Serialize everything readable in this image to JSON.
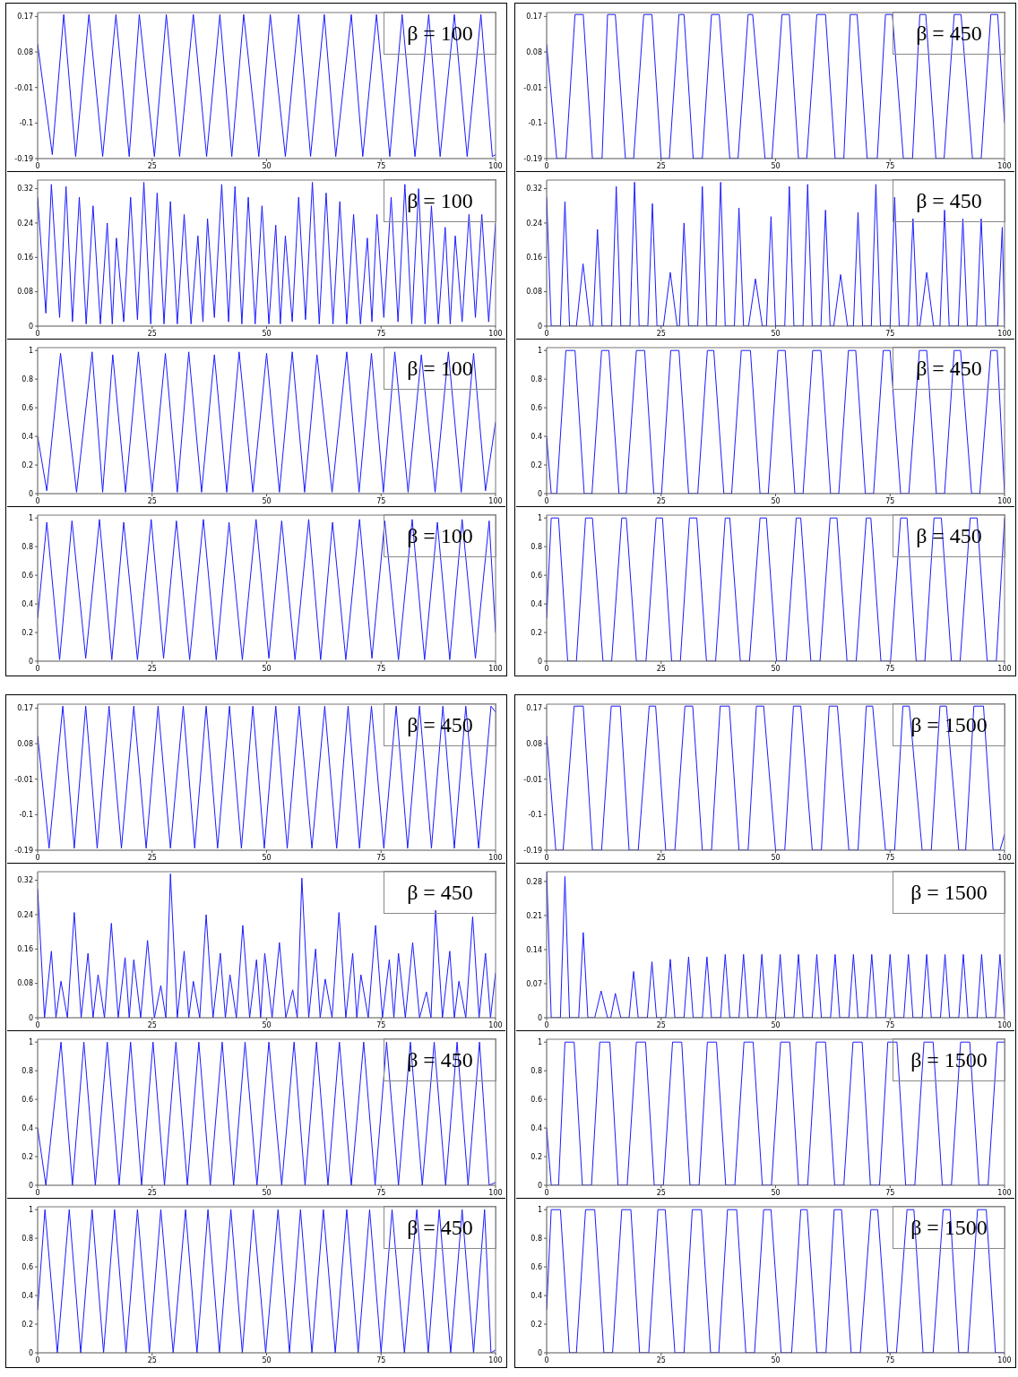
{
  "chart_data": [
    {
      "type": "line",
      "title": "β = 100",
      "xlim": [
        0,
        100
      ],
      "xticks": [
        0,
        25,
        50,
        75,
        100
      ],
      "ylim": [
        -0.19,
        0.18
      ],
      "yticks": [
        -0.19,
        -0.1,
        -0.01,
        0.08,
        0.17
      ],
      "series": [
        {
          "color": "#1a1aff",
          "x": [
            0,
            3.2,
            5.7,
            8.3,
            11.2,
            14.2,
            17.1,
            20,
            22.2,
            25.5,
            28.1,
            31,
            34,
            36.9,
            39.8,
            42.4,
            45,
            48.3,
            50.8,
            54.1,
            57,
            59.6,
            62.6,
            65.1,
            68.5,
            71,
            74,
            76.9,
            79.6,
            82.4,
            85.4,
            87.9,
            91,
            93.8,
            96.8,
            99.3,
            100
          ],
          "values": [
            0.1,
            -0.18,
            0.175,
            -0.185,
            0.175,
            -0.185,
            0.175,
            -0.185,
            0.175,
            -0.185,
            0.175,
            -0.185,
            0.175,
            -0.185,
            0.175,
            -0.185,
            0.175,
            -0.185,
            0.175,
            -0.185,
            0.175,
            -0.185,
            0.175,
            -0.185,
            0.175,
            -0.185,
            0.175,
            -0.185,
            0.175,
            -0.185,
            0.175,
            -0.185,
            0.175,
            -0.185,
            0.175,
            -0.185,
            -0.18
          ]
        }
      ]
    },
    {
      "type": "line",
      "title": "β = 450",
      "xlim": [
        0,
        100
      ],
      "xticks": [
        0,
        25,
        50,
        75,
        100
      ],
      "ylim": [
        -0.19,
        0.18
      ],
      "yticks": [
        -0.19,
        -0.1,
        -0.01,
        0.08,
        0.17
      ],
      "series": [
        {
          "color": "#1a1aff",
          "x": [
            0,
            2.2,
            4.2,
            6.2,
            8,
            10,
            12.1,
            13.3,
            15,
            17.2,
            19,
            21.2,
            23,
            25,
            26.8,
            28.9,
            30,
            32,
            34,
            36,
            37.7,
            40,
            41.8,
            44,
            45,
            47.7,
            49.2,
            51.4,
            53,
            55,
            56.8,
            59,
            60.9,
            63,
            64.9,
            66.3,
            67.8,
            70,
            72.2,
            74,
            75.5,
            77.9,
            79.9,
            81.5,
            82.8,
            85,
            86.8,
            89,
            90.5,
            93,
            94.9,
            97,
            98.5,
            100
          ],
          "values": [
            0.1,
            -0.19,
            -0.19,
            0.175,
            0.175,
            -0.19,
            -0.19,
            0.175,
            0.175,
            -0.19,
            -0.19,
            0.175,
            0.175,
            -0.19,
            -0.19,
            0.175,
            0.175,
            -0.19,
            -0.19,
            0.175,
            0.175,
            -0.19,
            -0.19,
            0.175,
            0.175,
            -0.19,
            -0.19,
            0.175,
            0.175,
            -0.19,
            -0.19,
            0.175,
            0.175,
            -0.19,
            -0.19,
            0.175,
            0.175,
            -0.19,
            -0.19,
            0.175,
            0.175,
            -0.19,
            -0.19,
            0.175,
            0.175,
            -0.19,
            -0.19,
            0.175,
            0.175,
            -0.19,
            -0.19,
            0.175,
            0.175,
            -0.1
          ]
        }
      ]
    },
    {
      "type": "line",
      "title": "β = 100",
      "xlim": [
        0,
        100
      ],
      "xticks": [
        0,
        25,
        50,
        75,
        100
      ],
      "ylim": [
        0,
        0.34
      ],
      "yticks": [
        0,
        0.08,
        0.16,
        0.24,
        0.32
      ],
      "series": [
        {
          "color": "#1a1aff",
          "x": [
            0,
            1.8,
            3,
            4.8,
            6.2,
            7.6,
            9.1,
            10.6,
            12.1,
            13.7,
            15.2,
            16.3,
            17.2,
            18.8,
            20.3,
            21.8,
            23.2,
            24.7,
            26.1,
            27.6,
            29,
            30.5,
            32,
            33.5,
            35,
            36.1,
            37.1,
            38.6,
            40.2,
            41.7,
            43.1,
            44.6,
            46,
            47.5,
            49,
            50.5,
            52,
            53,
            54.1,
            55.6,
            57,
            58.5,
            60,
            61.5,
            63,
            64.5,
            66,
            67.5,
            69,
            70.5,
            72,
            73,
            74.1,
            75.6,
            77.2,
            78.7,
            80.2,
            81.7,
            83.2,
            84.6,
            86,
            87.5,
            89,
            90.1,
            91.2,
            92.7,
            94.2,
            95.6,
            97,
            98.5,
            100
          ],
          "values": [
            0.3,
            0.03,
            0.33,
            0.02,
            0.325,
            0.01,
            0.3,
            0.005,
            0.28,
            0.005,
            0.24,
            0.005,
            0.205,
            0.01,
            0.3,
            0.015,
            0.335,
            0.005,
            0.31,
            0.005,
            0.29,
            0.005,
            0.26,
            0.005,
            0.21,
            0.01,
            0.25,
            0.02,
            0.33,
            0.01,
            0.325,
            0.005,
            0.3,
            0.005,
            0.28,
            0.005,
            0.235,
            0.005,
            0.21,
            0.01,
            0.3,
            0.015,
            0.335,
            0.005,
            0.31,
            0.005,
            0.29,
            0.005,
            0.26,
            0.005,
            0.205,
            0.01,
            0.26,
            0.02,
            0.3,
            0.01,
            0.33,
            0.005,
            0.32,
            0.005,
            0.28,
            0.005,
            0.23,
            0.005,
            0.21,
            0.01,
            0.26,
            0.02,
            0.26,
            0.01,
            0.24
          ]
        }
      ]
    },
    {
      "type": "line",
      "title": "β = 450",
      "xlim": [
        0,
        100
      ],
      "xticks": [
        0,
        25,
        50,
        75,
        100
      ],
      "ylim": [
        0,
        0.34
      ],
      "yticks": [
        0,
        0.08,
        0.16,
        0.24,
        0.32
      ],
      "series": [
        {
          "color": "#1a1aff",
          "x": [
            0,
            1,
            3,
            4,
            5,
            6.5,
            7.95,
            9.5,
            10.1,
            11.1,
            12.1,
            14.2,
            15.2,
            16.2,
            18.2,
            19.2,
            20.2,
            22.1,
            23.1,
            24.1,
            25.5,
            27,
            28.5,
            29,
            30,
            31,
            33,
            34,
            35,
            37,
            38,
            39,
            41,
            42,
            43,
            44.1,
            45.6,
            47.1,
            48,
            49,
            50,
            52,
            53,
            54,
            56,
            57,
            58,
            59.9,
            60.9,
            61.9,
            62.7,
            64.2,
            65.7,
            67,
            68,
            69,
            70.9,
            71.9,
            72.9,
            75,
            76,
            77,
            79,
            80,
            81,
            81.5,
            83,
            84.5,
            85.9,
            86.9,
            87.9,
            89.9,
            90.9,
            91.9,
            93.9,
            94.9,
            95.9,
            98.5,
            99.5,
            100
          ],
          "values": [
            0.3,
            0,
            0,
            0.29,
            0,
            0,
            0.145,
            0,
            0,
            0.225,
            0,
            0,
            0.325,
            0,
            0,
            0.335,
            0,
            0,
            0.285,
            0,
            0,
            0.125,
            0,
            0,
            0.24,
            0,
            0,
            0.325,
            0,
            0,
            0.335,
            0,
            0,
            0.275,
            0,
            0,
            0.11,
            0,
            0,
            0.255,
            0,
            0,
            0.325,
            0,
            0,
            0.33,
            0,
            0,
            0.27,
            0,
            0,
            0.12,
            0,
            0,
            0.265,
            0,
            0,
            0.33,
            0,
            0,
            0.3,
            0,
            0,
            0.25,
            0,
            0,
            0.125,
            0,
            0,
            0.27,
            0,
            0,
            0.25,
            0,
            0,
            0.25,
            0,
            0,
            0.23,
            0
          ]
        }
      ]
    },
    {
      "type": "line",
      "title": "β = 100",
      "xlim": [
        0,
        100
      ],
      "xticks": [
        0,
        25,
        50,
        75,
        100
      ],
      "ylim": [
        0,
        1.02
      ],
      "yticks": [
        0,
        0.2,
        0.4,
        0.6,
        0.8,
        1
      ],
      "series": [
        {
          "color": "#1a1aff",
          "x": [
            0,
            2,
            5,
            8.5,
            11.9,
            14.2,
            16.4,
            19.2,
            22,
            25,
            27.9,
            30.5,
            33,
            35.8,
            38.6,
            41.3,
            44,
            47,
            50,
            52.8,
            55.6,
            58.3,
            61,
            64.3,
            67.5,
            70.2,
            72.9,
            75.5,
            78,
            80.9,
            83.8,
            86.8,
            89.7,
            92.5,
            95.2,
            97.8,
            100
          ],
          "values": [
            0.4,
            0.02,
            0.98,
            0.01,
            0.99,
            0.01,
            0.97,
            0.01,
            0.99,
            0.01,
            0.98,
            0.01,
            0.99,
            0.01,
            0.97,
            0.01,
            0.99,
            0.01,
            0.98,
            0.01,
            0.99,
            0.01,
            0.97,
            0.01,
            0.99,
            0.01,
            0.98,
            0.01,
            0.99,
            0.01,
            0.97,
            0.01,
            0.99,
            0.01,
            0.98,
            0.02,
            0.5
          ]
        }
      ]
    },
    {
      "type": "line",
      "title": "β = 450",
      "xlim": [
        0,
        100
      ],
      "xticks": [
        0,
        25,
        50,
        75,
        100
      ],
      "ylim": [
        0,
        1.02
      ],
      "yticks": [
        0,
        0.2,
        0.4,
        0.6,
        0.8,
        1
      ],
      "series": [
        {
          "color": "#1a1aff",
          "x": [
            0,
            1,
            2.2,
            4.2,
            6.2,
            8.2,
            9.9,
            12,
            13.6,
            15.8,
            17.4,
            19.6,
            21.4,
            23.4,
            25.1,
            27.1,
            28.9,
            31,
            33,
            35.1,
            36.5,
            38.7,
            40.4,
            42.5,
            44.5,
            46.6,
            48.4,
            50.5,
            52.1,
            54.2,
            56,
            58.1,
            59.9,
            62,
            63.8,
            65.9,
            67.5,
            69.6,
            71.4,
            73.5,
            75,
            77.3,
            79.1,
            81.4,
            83,
            85.1,
            86.9,
            89,
            90.4,
            92.8,
            94.6,
            97,
            98.4,
            100
          ],
          "values": [
            0.4,
            0,
            0,
            1,
            1,
            0,
            0,
            1,
            1,
            0,
            0,
            1,
            1,
            0,
            0,
            1,
            1,
            0,
            0,
            1,
            1,
            0,
            0,
            1,
            1,
            0,
            0,
            1,
            1,
            0,
            0,
            1,
            1,
            0,
            0,
            1,
            1,
            0,
            0,
            1,
            1,
            0,
            0,
            1,
            1,
            0,
            0,
            1,
            1,
            0,
            0,
            1,
            1,
            0
          ]
        }
      ]
    },
    {
      "type": "line",
      "title": "β = 100",
      "xlim": [
        0,
        100
      ],
      "xticks": [
        0,
        25,
        50,
        75,
        100
      ],
      "ylim": [
        0,
        1.02
      ],
      "yticks": [
        0,
        0.2,
        0.4,
        0.6,
        0.8,
        1
      ],
      "series": [
        {
          "color": "#1a1aff",
          "x": [
            0,
            2,
            4.8,
            7.5,
            10.5,
            13.5,
            16.2,
            18.8,
            21.8,
            24.8,
            27.5,
            30.3,
            33.2,
            36.2,
            39,
            41.8,
            44.7,
            47.7,
            50.5,
            53.3,
            56.2,
            59.2,
            61.8,
            64.4,
            67.3,
            70.3,
            73,
            75.8,
            78.8,
            81.8,
            84.5,
            87.3,
            90,
            92.7,
            95.6,
            98.6,
            100
          ],
          "values": [
            0.3,
            0.97,
            0.01,
            0.98,
            0.02,
            0.99,
            0.01,
            0.97,
            0.01,
            0.99,
            0.02,
            0.98,
            0.01,
            0.99,
            0.01,
            0.97,
            0.01,
            0.99,
            0.02,
            0.98,
            0.01,
            0.99,
            0.01,
            0.97,
            0.01,
            0.99,
            0.02,
            0.98,
            0.01,
            0.99,
            0.01,
            0.97,
            0.01,
            0.99,
            0.02,
            0.98,
            0.2
          ]
        }
      ]
    },
    {
      "type": "line",
      "title": "β = 450",
      "xlim": [
        0,
        100
      ],
      "xticks": [
        0,
        25,
        50,
        75,
        100
      ],
      "ylim": [
        0,
        1.02
      ],
      "yticks": [
        0,
        0.2,
        0.4,
        0.6,
        0.8,
        1
      ],
      "series": [
        {
          "color": "#1a1aff",
          "x": [
            0,
            1,
            2.6,
            4.6,
            6.5,
            8.5,
            10,
            12.3,
            14.2,
            16.4,
            17.4,
            19.6,
            21.7,
            23.9,
            25.3,
            27.3,
            29.2,
            31.2,
            32.8,
            34.9,
            36.9,
            39,
            40,
            42.3,
            44.3,
            46.6,
            48,
            50.2,
            52.3,
            54.5,
            55.5,
            57.7,
            59.7,
            61.9,
            63.4,
            65.6,
            67.6,
            69.8,
            70.8,
            73,
            75.1,
            77.3,
            78.7,
            80.7,
            82.6,
            84.6,
            86.2,
            88.4,
            90.3,
            92.5,
            94,
            96.2,
            98.2,
            100
          ],
          "values": [
            0.3,
            1,
            1,
            0,
            0,
            1,
            1,
            0,
            0,
            1,
            1,
            0,
            0,
            1,
            1,
            0,
            0,
            1,
            1,
            0,
            0,
            1,
            1,
            0,
            0,
            1,
            1,
            0,
            0,
            1,
            1,
            0,
            0,
            1,
            1,
            0,
            0,
            1,
            1,
            0,
            0,
            1,
            1,
            0,
            0,
            1,
            1,
            0,
            0,
            1,
            1,
            0,
            0,
            1
          ]
        }
      ]
    },
    {
      "type": "line",
      "title": "β = 450",
      "xlim": [
        0,
        100
      ],
      "xticks": [
        0,
        25,
        50,
        75,
        100
      ],
      "ylim": [
        -0.19,
        0.18
      ],
      "yticks": [
        -0.19,
        -0.1,
        -0.01,
        0.08,
        0.17
      ],
      "series": [
        {
          "color": "#1a1aff",
          "x": [
            0,
            2.5,
            5.5,
            8,
            10.5,
            13,
            15.6,
            18.3,
            21,
            23.7,
            26.3,
            29,
            31.8,
            34.3,
            36.8,
            39.3,
            41.9,
            44.5,
            47,
            49.5,
            52,
            54.5,
            57.1,
            59.9,
            62.7,
            65.3,
            67.8,
            70.3,
            72.9,
            75.6,
            78.3,
            80.8,
            83.4,
            86,
            88.5,
            91,
            93.5,
            96.3,
            99,
            100
          ],
          "values": [
            0.1,
            -0.185,
            0.175,
            -0.185,
            0.175,
            -0.185,
            0.175,
            -0.185,
            0.175,
            -0.185,
            0.175,
            -0.185,
            0.175,
            -0.185,
            0.175,
            -0.185,
            0.175,
            -0.185,
            0.175,
            -0.185,
            0.175,
            -0.185,
            0.175,
            -0.185,
            0.175,
            -0.185,
            0.175,
            -0.185,
            0.175,
            -0.185,
            0.175,
            -0.185,
            0.175,
            -0.185,
            0.175,
            -0.185,
            0.175,
            -0.185,
            0.175,
            0.16
          ]
        }
      ]
    },
    {
      "type": "line",
      "title": "β = 1500",
      "xlim": [
        0,
        100
      ],
      "xticks": [
        0,
        25,
        50,
        75,
        100
      ],
      "ylim": [
        -0.19,
        0.18
      ],
      "yticks": [
        -0.19,
        -0.1,
        -0.01,
        0.08,
        0.17
      ],
      "series": [
        {
          "color": "#1a1aff",
          "x": [
            0,
            2,
            3.6,
            6,
            8,
            10,
            12,
            14.1,
            16.1,
            18,
            20,
            22.4,
            23.8,
            26,
            28,
            30.2,
            31.9,
            34,
            36,
            37.9,
            39.9,
            42,
            44,
            45.8,
            47.4,
            50,
            52,
            53.9,
            55.5,
            58,
            60,
            61.7,
            63.5,
            66,
            68,
            69.8,
            71.2,
            74,
            76,
            77.8,
            79.2,
            82,
            84,
            85.9,
            87.3,
            90,
            91.5,
            93.3,
            95.4,
            97.5,
            99,
            100
          ],
          "values": [
            0.1,
            -0.19,
            -0.19,
            0.175,
            0.175,
            -0.19,
            -0.19,
            0.175,
            0.175,
            -0.19,
            -0.19,
            0.175,
            0.175,
            -0.19,
            -0.19,
            0.175,
            0.175,
            -0.19,
            -0.19,
            0.175,
            0.175,
            -0.19,
            -0.19,
            0.175,
            0.175,
            -0.19,
            -0.19,
            0.175,
            0.175,
            -0.19,
            -0.19,
            0.175,
            0.175,
            -0.19,
            -0.19,
            0.175,
            0.175,
            -0.19,
            -0.19,
            0.175,
            0.175,
            -0.19,
            -0.19,
            0.175,
            0.175,
            -0.19,
            -0.19,
            0.175,
            0.175,
            -0.19,
            -0.19,
            -0.15
          ]
        }
      ]
    },
    {
      "type": "line",
      "title": "β = 450",
      "xlim": [
        0,
        100
      ],
      "xticks": [
        0,
        25,
        50,
        75,
        100
      ],
      "ylim": [
        0,
        0.34
      ],
      "yticks": [
        0,
        0.08,
        0.16,
        0.24,
        0.32
      ],
      "series": [
        {
          "color": "#1a1aff",
          "x": [
            0,
            1.5,
            3,
            4,
            5.1,
            6.5,
            8,
            9.5,
            11,
            12.1,
            13.2,
            14.6,
            16.1,
            17.6,
            19.1,
            20,
            21,
            22.5,
            24,
            25.5,
            26.9,
            28,
            29,
            30.5,
            32,
            33,
            34,
            35.4,
            36.8,
            38.3,
            39.9,
            41,
            42,
            43.4,
            44.8,
            46.3,
            47.8,
            48.7,
            49.6,
            51.2,
            52.8,
            54.2,
            55.7,
            56.7,
            57.7,
            59.2,
            60.7,
            61.7,
            62.8,
            64.3,
            65.8,
            67.3,
            68.8,
            69.7,
            70.6,
            72.2,
            73.8,
            75.3,
            76.8,
            77.8,
            78.8,
            80.3,
            81.9,
            83.4,
            84.9,
            85.9,
            86.9,
            88.4,
            90,
            91,
            92,
            93.5,
            95,
            96.4,
            97.8,
            98.9,
            100
          ],
          "values": [
            0.3,
            0,
            0.155,
            0,
            0.085,
            0,
            0.245,
            0,
            0.15,
            0,
            0.1,
            0,
            0.22,
            0,
            0.14,
            0,
            0.135,
            0,
            0.18,
            0,
            0.075,
            0,
            0.335,
            0,
            0.155,
            0,
            0.085,
            0,
            0.24,
            0,
            0.15,
            0,
            0.1,
            0,
            0.215,
            0,
            0.135,
            0,
            0.15,
            0,
            0.175,
            0,
            0.065,
            0,
            0.325,
            0,
            0.16,
            0,
            0.09,
            0,
            0.245,
            0,
            0.15,
            0,
            0.1,
            0,
            0.215,
            0,
            0.135,
            0,
            0.15,
            0,
            0.175,
            0,
            0.06,
            0,
            0.25,
            0,
            0.155,
            0,
            0.085,
            0,
            0.235,
            0,
            0.15,
            0,
            0.105
          ]
        }
      ]
    },
    {
      "type": "line",
      "title": "β = 1500",
      "xlim": [
        0,
        100
      ],
      "xticks": [
        0,
        25,
        50,
        75,
        100
      ],
      "ylim": [
        0,
        0.3
      ],
      "yticks": [
        0,
        0.07,
        0.14,
        0.21,
        0.28
      ],
      "series": [
        {
          "color": "#1a1aff",
          "x": [
            0,
            1,
            3,
            4,
            5,
            7,
            8,
            9,
            10.5,
            11.9,
            13.3,
            14,
            15,
            16.2,
            18,
            19,
            20,
            22,
            23,
            24,
            26,
            27,
            28,
            30,
            31,
            32,
            34,
            35,
            36,
            38,
            39,
            40,
            42,
            43,
            44,
            46,
            47,
            48,
            50,
            51,
            52,
            54,
            55,
            56,
            58,
            59,
            60,
            62,
            63,
            64,
            66,
            67,
            68,
            70,
            71,
            72,
            74,
            75,
            76,
            78,
            79,
            80,
            82,
            83,
            84,
            86,
            87,
            88,
            90,
            91,
            92,
            94,
            95,
            96,
            98,
            99,
            100
          ],
          "values": [
            0.3,
            0,
            0,
            0.29,
            0,
            0,
            0.175,
            0,
            0,
            0.055,
            0,
            0,
            0.05,
            0,
            0,
            0.095,
            0,
            0,
            0.115,
            0,
            0,
            0.12,
            0,
            0,
            0.125,
            0,
            0,
            0.125,
            0,
            0,
            0.13,
            0,
            0,
            0.13,
            0,
            0,
            0.13,
            0,
            0,
            0.13,
            0,
            0,
            0.13,
            0,
            0,
            0.13,
            0,
            0,
            0.13,
            0,
            0,
            0.13,
            0,
            0,
            0.13,
            0,
            0,
            0.13,
            0,
            0,
            0.13,
            0,
            0,
            0.13,
            0,
            0,
            0.13,
            0,
            0,
            0.13,
            0,
            0,
            0.13,
            0,
            0,
            0.13,
            0
          ]
        }
      ]
    },
    {
      "type": "line",
      "title": "β = 450",
      "xlim": [
        0,
        100
      ],
      "xticks": [
        0,
        25,
        50,
        75,
        100
      ],
      "ylim": [
        0,
        1.02
      ],
      "yticks": [
        0,
        0.2,
        0.4,
        0.6,
        0.8,
        1
      ],
      "series": [
        {
          "color": "#1a1aff",
          "x": [
            0,
            1.8,
            5.1,
            7.6,
            10.1,
            12.6,
            15.2,
            17.8,
            20.3,
            22.7,
            25.2,
            27.7,
            30.2,
            32.7,
            35.2,
            37.7,
            40.3,
            42.8,
            45.3,
            47.9,
            50.5,
            53.3,
            56,
            58.4,
            60.9,
            63.4,
            65.9,
            68.5,
            71.2,
            73.7,
            76.2,
            78.8,
            81.4,
            84,
            86.6,
            89.1,
            91.6,
            94,
            96.5,
            98.6,
            100
          ],
          "values": [
            0.4,
            0,
            1,
            0,
            1,
            0,
            1,
            0,
            1,
            0,
            1,
            0,
            1,
            0,
            1,
            0,
            1,
            0,
            1,
            0,
            1,
            0,
            1,
            0,
            1,
            0,
            1,
            0,
            1,
            0,
            1,
            0,
            1,
            0,
            1,
            0,
            1,
            0,
            1,
            0,
            0.02
          ]
        }
      ]
    },
    {
      "type": "line",
      "title": "β = 1500",
      "xlim": [
        0,
        100
      ],
      "xticks": [
        0,
        25,
        50,
        75,
        100
      ],
      "ylim": [
        0,
        1.02
      ],
      "yticks": [
        0,
        0.2,
        0.4,
        0.6,
        0.8,
        1
      ],
      "series": [
        {
          "color": "#1a1aff",
          "x": [
            0,
            1,
            2.6,
            4,
            6,
            7.8,
            9.8,
            11.6,
            13.8,
            15.6,
            17.6,
            19.6,
            21.6,
            23.5,
            25.5,
            27.5,
            29.5,
            31.3,
            33.3,
            35.1,
            37.1,
            39.1,
            41.1,
            43.1,
            45.1,
            47.1,
            49.1,
            51.1,
            53.1,
            55,
            57,
            58.9,
            60.9,
            62.9,
            64.9,
            66.9,
            68.9,
            70.7,
            72.7,
            74.5,
            76.5,
            78.4,
            80.4,
            82.4,
            84.4,
            86.4,
            88.4,
            90.4,
            92.4,
            94.4,
            96.4,
            98.4,
            100
          ],
          "values": [
            0.4,
            0,
            0,
            1,
            1,
            0,
            0,
            1,
            1,
            0,
            0,
            1,
            1,
            0,
            0,
            1,
            1,
            0,
            0,
            1,
            1,
            0,
            0,
            1,
            1,
            0,
            0,
            1,
            1,
            0,
            0,
            1,
            1,
            0,
            0,
            1,
            1,
            0,
            0,
            1,
            1,
            0,
            0,
            1,
            1,
            0,
            0,
            1,
            1,
            0,
            0,
            1,
            1
          ]
        }
      ]
    },
    {
      "type": "line",
      "title": "β = 450",
      "xlim": [
        0,
        100
      ],
      "xticks": [
        0,
        25,
        50,
        75,
        100
      ],
      "ylim": [
        0,
        1.02
      ],
      "yticks": [
        0,
        0.2,
        0.4,
        0.6,
        0.8,
        1
      ],
      "series": [
        {
          "color": "#1a1aff",
          "x": [
            0,
            1.6,
            4.3,
            6.9,
            9.4,
            11.9,
            14.4,
            16.8,
            19.3,
            21.8,
            24.4,
            26.9,
            29.6,
            32.3,
            34.8,
            37.2,
            39.7,
            42.2,
            44.7,
            47.1,
            49.8,
            52.5,
            55,
            57.4,
            59.9,
            62.4,
            65,
            67.5,
            70,
            72.5,
            75,
            77.4,
            80.1,
            82.8,
            85.3,
            87.7,
            90.2,
            92.7,
            95.2,
            97.6,
            99,
            100
          ],
          "values": [
            0.3,
            1,
            0,
            1,
            0,
            1,
            0,
            1,
            0,
            1,
            0,
            1,
            0,
            1,
            0,
            1,
            0,
            1,
            0,
            1,
            0,
            1,
            0,
            1,
            0,
            1,
            0,
            1,
            0,
            1,
            0,
            1,
            0,
            1,
            0,
            1,
            0,
            1,
            0,
            1,
            0,
            0.02
          ]
        }
      ]
    },
    {
      "type": "line",
      "title": "β = 1500",
      "xlim": [
        0,
        100
      ],
      "xticks": [
        0,
        25,
        50,
        75,
        100
      ],
      "ylim": [
        0,
        1.02
      ],
      "yticks": [
        0,
        0.2,
        0.4,
        0.6,
        0.8,
        1
      ],
      "series": [
        {
          "color": "#1a1aff",
          "x": [
            0,
            1,
            3,
            5,
            6.5,
            8.5,
            10.5,
            12.5,
            14.4,
            16.4,
            18.4,
            20.3,
            22.3,
            24.3,
            25.9,
            28,
            30,
            31.8,
            33.8,
            35.8,
            37.6,
            39.5,
            41.5,
            43.5,
            45.4,
            47.4,
            49,
            51.2,
            53.5,
            55.5,
            56.9,
            59,
            61,
            62.8,
            64.4,
            66.5,
            68.5,
            70.8,
            72.3,
            74.5,
            76.4,
            78.7,
            80.2,
            82.2,
            84.4,
            86.6,
            88.1,
            90,
            92,
            94.1,
            96,
            98,
            100
          ],
          "values": [
            0.3,
            1,
            1,
            0,
            0,
            1,
            1,
            0,
            0,
            1,
            1,
            0,
            0,
            1,
            1,
            0,
            0,
            1,
            1,
            0,
            0,
            1,
            1,
            0,
            0,
            1,
            1,
            0,
            0,
            1,
            1,
            0,
            0,
            1,
            1,
            0,
            0,
            1,
            1,
            0,
            0,
            1,
            1,
            0,
            0,
            1,
            1,
            0,
            0,
            1,
            1,
            0,
            0
          ]
        }
      ]
    }
  ]
}
